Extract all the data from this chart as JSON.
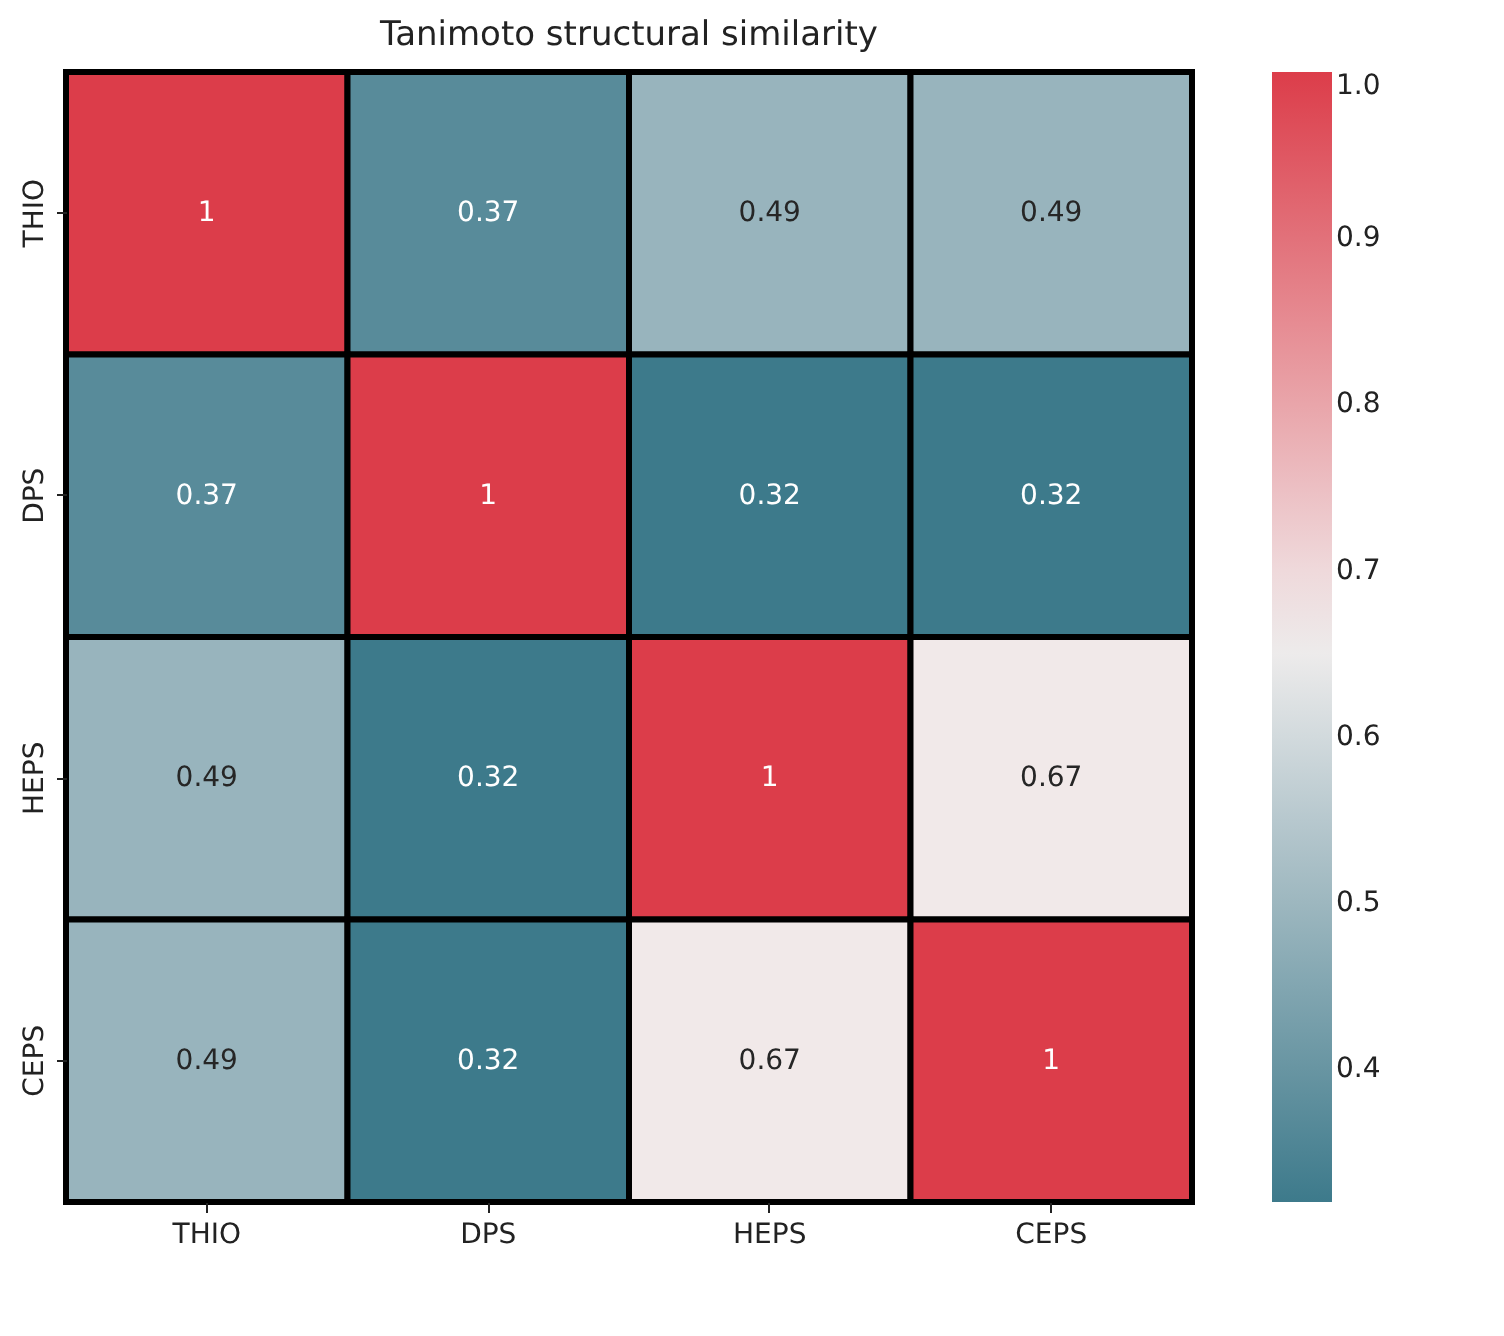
{
  "chart_data": {
    "type": "heatmap",
    "title": "Tanimoto structural similarity",
    "categories": [
      "THIO",
      "DPS",
      "HEPS",
      "CEPS"
    ],
    "y_categories": [
      "THIO",
      "DPS",
      "HEPS",
      "CEPS"
    ],
    "cells": [
      [
        1,
        0.37,
        0.49,
        0.49
      ],
      [
        0.37,
        1,
        0.32,
        0.32
      ],
      [
        0.49,
        0.32,
        1,
        0.67
      ],
      [
        0.49,
        0.32,
        0.67,
        1
      ]
    ],
    "colors": [
      "#3d7a8b",
      "#f2eeee",
      "#dc3d4a"
    ],
    "clim": [
      0.32,
      1.0
    ],
    "cticks": [
      0.4,
      0.5,
      0.6,
      0.7,
      0.8,
      0.9,
      {
        "value": 1,
        "label": "1.0"
      }
    ],
    "data_labels": true
  }
}
